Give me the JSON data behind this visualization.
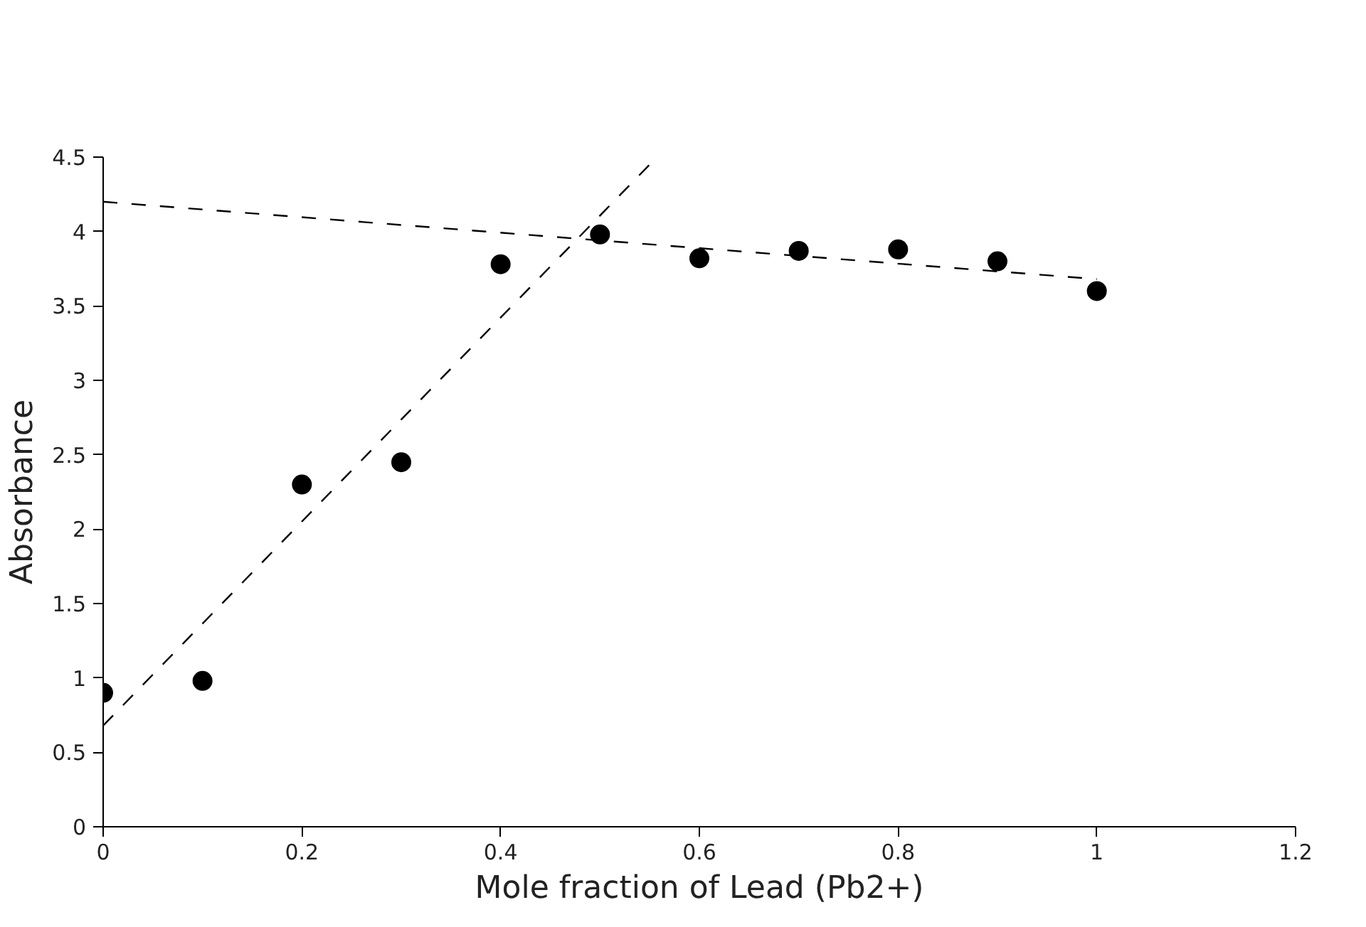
{
  "chart_data": {
    "type": "scatter",
    "xlabel": "Mole fraction of Lead (Pb2+)",
    "ylabel": "Absorbance",
    "x": [
      0,
      0.1,
      0.2,
      0.3,
      0.4,
      0.5,
      0.6,
      0.7,
      0.8,
      0.9,
      1
    ],
    "series": [
      {
        "color": "#000000",
        "marker": "circle",
        "values": [
          0.9,
          0.98,
          2.3,
          2.45,
          3.78,
          3.98,
          3.82,
          3.87,
          3.88,
          3.8,
          3.6
        ]
      },
      {
        "type": "line",
        "color": "#000000",
        "line_style": "dashed",
        "marker": "none",
        "x": [
          0,
          0.55
        ],
        "values": [
          0.68,
          4.45
        ]
      },
      {
        "type": "line",
        "color": "#000000",
        "line_style": "dashed",
        "marker": "none",
        "x": [
          0,
          1
        ],
        "values": [
          4.2,
          3.68
        ]
      }
    ],
    "xlim": [
      0,
      1.2
    ],
    "xticks": [
      0,
      0.2,
      0.4,
      0.6,
      0.8,
      1,
      1.2
    ],
    "ylim": [
      0,
      4.5
    ],
    "yticks": [
      0,
      0.5,
      1,
      1.5,
      2,
      2.5,
      3,
      3.5,
      4,
      4.5
    ],
    "grid": false
  }
}
